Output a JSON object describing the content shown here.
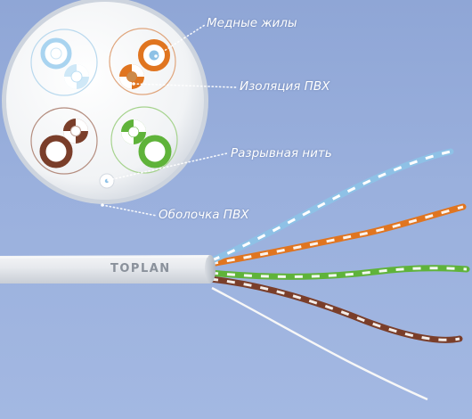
{
  "labels": {
    "copper_wires": "Медные жилы",
    "pvc_insulation": "Изоляция ПВХ",
    "rip_cord": "Разрывная нить",
    "pvc_sheath": "Оболочка ПВХ"
  },
  "cable": {
    "brand": "TOPLAN"
  },
  "colors": {
    "background": "#97addb",
    "sheath": "#e9ecef",
    "pair_blue": "#8ec1e6",
    "pair_orange": "#e07520",
    "pair_green": "#5fb33a",
    "pair_brown": "#7a3e2a",
    "white_wire": "#f7f7f7",
    "copper": "#cc8a4a"
  }
}
